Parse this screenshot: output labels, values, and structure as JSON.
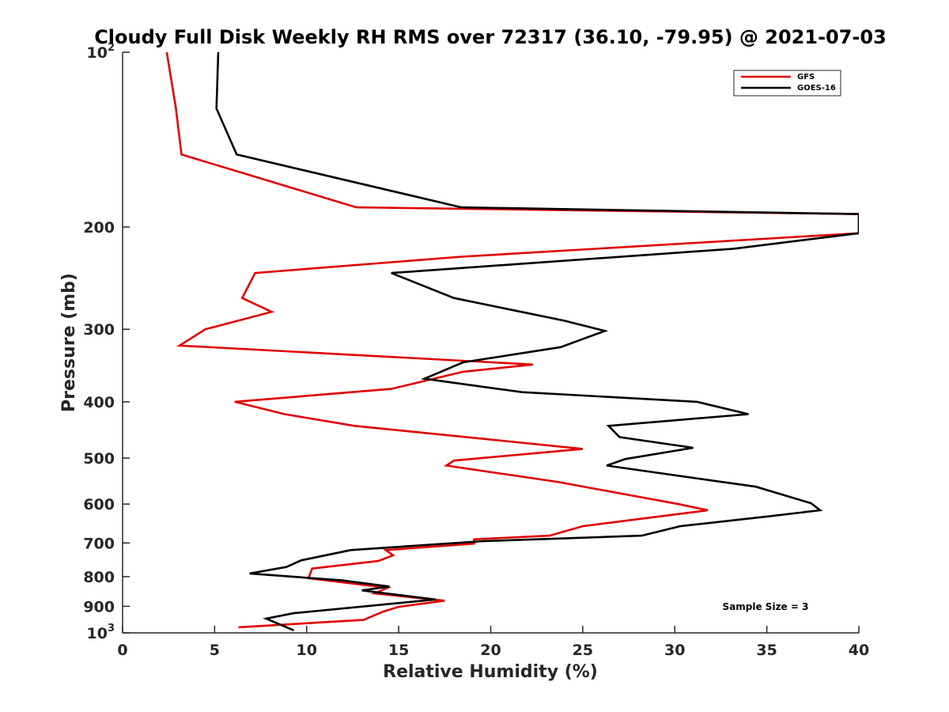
{
  "chart_data": {
    "type": "line",
    "title": "Cloudy Full Disk Weekly RH RMS over 72317 (36.10, -79.95) @ 2021-07-03",
    "xlabel": "Relative Humidity (%)",
    "ylabel": "Pressure (mb)",
    "xlim": [
      0,
      40
    ],
    "ylim": [
      100,
      1000
    ],
    "y_scale": "log",
    "y_reversed": true,
    "x_ticks": [
      0,
      5,
      10,
      15,
      20,
      25,
      30,
      35,
      40
    ],
    "y_ticks": [
      {
        "value": 100,
        "label": "10",
        "sup": "2"
      },
      {
        "value": 200,
        "label": "200",
        "sup": ""
      },
      {
        "value": 300,
        "label": "300",
        "sup": ""
      },
      {
        "value": 400,
        "label": "400",
        "sup": ""
      },
      {
        "value": 500,
        "label": "500",
        "sup": ""
      },
      {
        "value": 600,
        "label": "600",
        "sup": ""
      },
      {
        "value": 700,
        "label": "700",
        "sup": ""
      },
      {
        "value": 800,
        "label": "800",
        "sup": ""
      },
      {
        "value": 900,
        "label": "900",
        "sup": ""
      },
      {
        "value": 1000,
        "label": "10",
        "sup": "3"
      }
    ],
    "grid": false,
    "legend_position": "top-right",
    "annotation": "Sample Size = 3",
    "series": [
      {
        "name": "GFS",
        "color": "#e00000",
        "points": [
          [
            2.4,
            100
          ],
          [
            2.9,
            125
          ],
          [
            3.2,
            150
          ],
          [
            12.7,
            185
          ],
          [
            40,
            190
          ],
          [
            40,
            205
          ],
          [
            18.4,
            225
          ],
          [
            7.2,
            240
          ],
          [
            6.5,
            265
          ],
          [
            8.1,
            280
          ],
          [
            4.5,
            300
          ],
          [
            3.1,
            320
          ],
          [
            22.3,
            345
          ],
          [
            18.5,
            355
          ],
          [
            14.6,
            380
          ],
          [
            6.1,
            400
          ],
          [
            8.8,
            420
          ],
          [
            12.6,
            440
          ],
          [
            25.0,
            482
          ],
          [
            18.0,
            505
          ],
          [
            17.6,
            515
          ],
          [
            23.7,
            550
          ],
          [
            30.2,
            600
          ],
          [
            31.8,
            615
          ],
          [
            29.2,
            630
          ],
          [
            25.0,
            655
          ],
          [
            23.2,
            680
          ],
          [
            19.1,
            690
          ],
          [
            19.1,
            702
          ],
          [
            14.3,
            720
          ],
          [
            14.7,
            735
          ],
          [
            13.9,
            752
          ],
          [
            10.3,
            775
          ],
          [
            10.1,
            805
          ],
          [
            14.4,
            836
          ],
          [
            13.7,
            855
          ],
          [
            17.5,
            880
          ],
          [
            15.0,
            902
          ],
          [
            14.2,
            918
          ],
          [
            13.1,
            950
          ],
          [
            6.3,
            978
          ]
        ]
      },
      {
        "name": "GOES-16",
        "color": "#000000",
        "points": [
          [
            5.2,
            100
          ],
          [
            5.1,
            125
          ],
          [
            6.2,
            150
          ],
          [
            18.4,
            185
          ],
          [
            40,
            190
          ],
          [
            40,
            205
          ],
          [
            33.2,
            218
          ],
          [
            14.6,
            240
          ],
          [
            18.0,
            265
          ],
          [
            24.0,
            290
          ],
          [
            26.2,
            302
          ],
          [
            23.8,
            322
          ],
          [
            18.5,
            342
          ],
          [
            16.4,
            365
          ],
          [
            21.7,
            385
          ],
          [
            31.2,
            400
          ],
          [
            34.0,
            420
          ],
          [
            26.4,
            440
          ],
          [
            27.0,
            460
          ],
          [
            31.0,
            480
          ],
          [
            27.3,
            502
          ],
          [
            26.3,
            515
          ],
          [
            34.4,
            560
          ],
          [
            37.4,
            598
          ],
          [
            37.9,
            615
          ],
          [
            35.1,
            630
          ],
          [
            30.3,
            655
          ],
          [
            28.2,
            680
          ],
          [
            19.6,
            695
          ],
          [
            12.4,
            720
          ],
          [
            9.7,
            750
          ],
          [
            8.9,
            770
          ],
          [
            6.9,
            790
          ],
          [
            11.9,
            812
          ],
          [
            14.5,
            832
          ],
          [
            13.0,
            845
          ],
          [
            17.0,
            876
          ],
          [
            9.3,
            925
          ],
          [
            7.8,
            945
          ],
          [
            9.3,
            990
          ]
        ]
      }
    ]
  }
}
